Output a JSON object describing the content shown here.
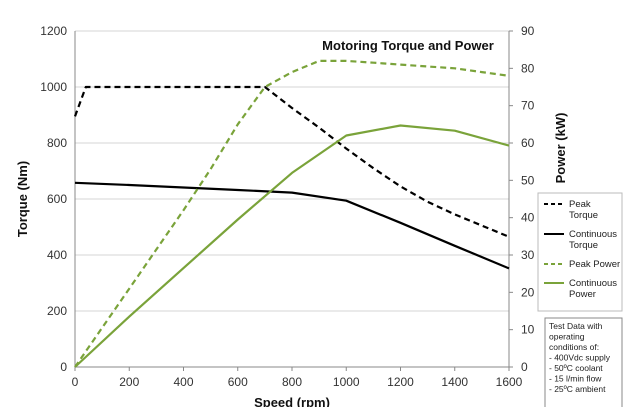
{
  "chart_data": {
    "type": "line",
    "title": "Motoring Torque and Power",
    "xlabel": "Speed (rpm)",
    "ylabel_left": "Torque (Nm)",
    "ylabel_right": "Power (kW)",
    "xlim": [
      0,
      1600
    ],
    "ylim_left": [
      0,
      1200
    ],
    "ylim_right": [
      0,
      90
    ],
    "x_ticks": [
      "0",
      "200",
      "400",
      "600",
      "800",
      "1000",
      "1200",
      "1400",
      "1600"
    ],
    "y_left_ticks": [
      "0",
      "200",
      "400",
      "600",
      "800",
      "1000",
      "1200"
    ],
    "y_right_ticks": [
      "0",
      "10",
      "20",
      "30",
      "40",
      "50",
      "60",
      "70",
      "80",
      "90"
    ],
    "grid": "horizontal",
    "legend_position": "right",
    "series": [
      {
        "name": "Peak Torque",
        "axis": "left",
        "color": "#000000",
        "style": "dashed",
        "x": [
          0,
          40,
          100,
          200,
          300,
          400,
          500,
          600,
          700,
          800,
          900,
          1000,
          1100,
          1200,
          1300,
          1400,
          1500,
          1600
        ],
        "y": [
          895,
          1000,
          1000,
          1000,
          1000,
          1000,
          1000,
          1000,
          1000,
          925,
          855,
          780,
          710,
          645,
          590,
          545,
          505,
          465
        ]
      },
      {
        "name": "Continuous Torque",
        "axis": "left",
        "color": "#000000",
        "style": "solid",
        "x": [
          0,
          200,
          400,
          600,
          800,
          1000,
          1200,
          1400,
          1600
        ],
        "y": [
          658,
          650,
          641,
          632,
          623,
          594,
          515,
          433,
          352
        ]
      },
      {
        "name": "Peak Power",
        "axis": "right",
        "color": "#7aa33a",
        "style": "dashed",
        "x": [
          0,
          100,
          200,
          300,
          400,
          500,
          600,
          700,
          800,
          900,
          1000,
          1100,
          1200,
          1300,
          1400,
          1500,
          1600
        ],
        "y": [
          0,
          10.5,
          21,
          31.5,
          42,
          53,
          65,
          75,
          79,
          82,
          82,
          81.5,
          81,
          80.5,
          80,
          79,
          78
        ]
      },
      {
        "name": "Continuous Power",
        "axis": "right",
        "color": "#7aa33a",
        "style": "solid",
        "x": [
          0,
          200,
          400,
          600,
          800,
          1000,
          1200,
          1400,
          1600
        ],
        "y": [
          0,
          13.5,
          26.5,
          39.5,
          52,
          62,
          64.7,
          63.3,
          59.3
        ]
      }
    ],
    "annotation": {
      "lines": [
        "Test Data with",
        "operating",
        "conditions of:",
        "- 400Vdc supply",
        "- 50ºC coolant",
        "- 15 l/min flow",
        "- 25ºC ambient"
      ]
    }
  }
}
